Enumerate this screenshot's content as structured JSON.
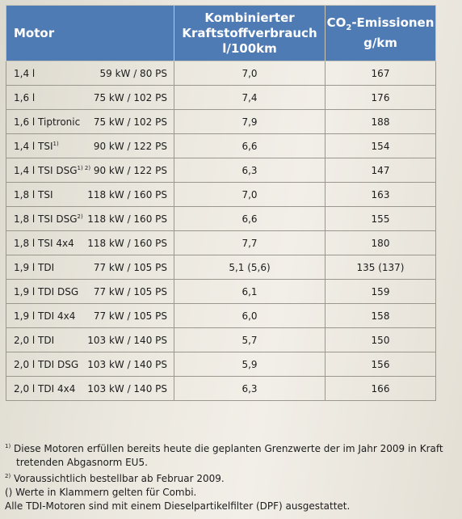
{
  "table": {
    "headers": {
      "motor": "Motor",
      "consumption_l1": "Kombinierter",
      "consumption_l2": "Kraftstoffverbrauch",
      "consumption_l3": "l/100km",
      "co2_pre": "CO",
      "co2_sub": "2",
      "co2_post": "-Emissionen",
      "co2_unit": "g/km"
    },
    "rows": [
      {
        "engine": "1,4 l",
        "mark": "",
        "power": "59 kW / 80 PS",
        "consumption": "7,0",
        "co2": "167"
      },
      {
        "engine": "1,6 l",
        "mark": "",
        "power": "75 kW / 102 PS",
        "consumption": "7,4",
        "co2": "176"
      },
      {
        "engine": "1,6 l Tiptronic",
        "mark": "",
        "power": "75 kW / 102 PS",
        "consumption": "7,9",
        "co2": "188"
      },
      {
        "engine": "1,4 l TSI",
        "mark": "1)",
        "power": "90 kW / 122 PS",
        "consumption": "6,6",
        "co2": "154"
      },
      {
        "engine": "1,4 l TSI DSG",
        "mark": "1) 2)",
        "power": "90 kW / 122 PS",
        "consumption": "6,3",
        "co2": "147"
      },
      {
        "engine": "1,8 l TSI",
        "mark": "",
        "power": "118 kW / 160 PS",
        "consumption": "7,0",
        "co2": "163"
      },
      {
        "engine": "1,8 l TSI DSG",
        "mark": "2)",
        "power": "118 kW / 160 PS",
        "consumption": "6,6",
        "co2": "155"
      },
      {
        "engine": "1,8 l TSI 4x4",
        "mark": "",
        "power": "118 kW / 160 PS",
        "consumption": "7,7",
        "co2": "180"
      },
      {
        "engine": "1,9 l TDI",
        "mark": "",
        "power": "77 kW / 105 PS",
        "consumption": "5,1 (5,6)",
        "co2": "135 (137)"
      },
      {
        "engine": "1,9 l TDI DSG",
        "mark": "",
        "power": "77 kW / 105 PS",
        "consumption": "6,1",
        "co2": "159"
      },
      {
        "engine": "1,9 l TDI 4x4",
        "mark": "",
        "power": "77 kW / 105 PS",
        "consumption": "6,0",
        "co2": "158"
      },
      {
        "engine": "2,0 l TDI",
        "mark": "",
        "power": "103 kW / 140 PS",
        "consumption": "5,7",
        "co2": "150"
      },
      {
        "engine": "2,0 l TDI DSG",
        "mark": "",
        "power": "103 kW / 140 PS",
        "consumption": "5,9",
        "co2": "156"
      },
      {
        "engine": "2,0 l TDI 4x4",
        "mark": "",
        "power": "103 kW / 140 PS",
        "consumption": "6,3",
        "co2": "166"
      }
    ]
  },
  "footnotes": {
    "f1_mark": "1)",
    "f1_line1": "Diese Motoren erfüllen bereits heute die geplanten Grenzwerte der im Jahr 2009 in Kraft",
    "f1_line2": "tretenden Abgasnorm EU5.",
    "f2_mark": "2)",
    "f2_text": "Voraussichtlich bestellbar ab Februar 2009.",
    "f3_text": "() Werte in Klammern gelten für Combi.",
    "f4_text": "Alle TDI-Motoren sind mit einem Dieselpartikelfilter (DPF) ausgestattet."
  },
  "colors": {
    "header_bg": "#4f7bb5",
    "header_text": "#ffffff",
    "paper": "#ebe8df"
  }
}
